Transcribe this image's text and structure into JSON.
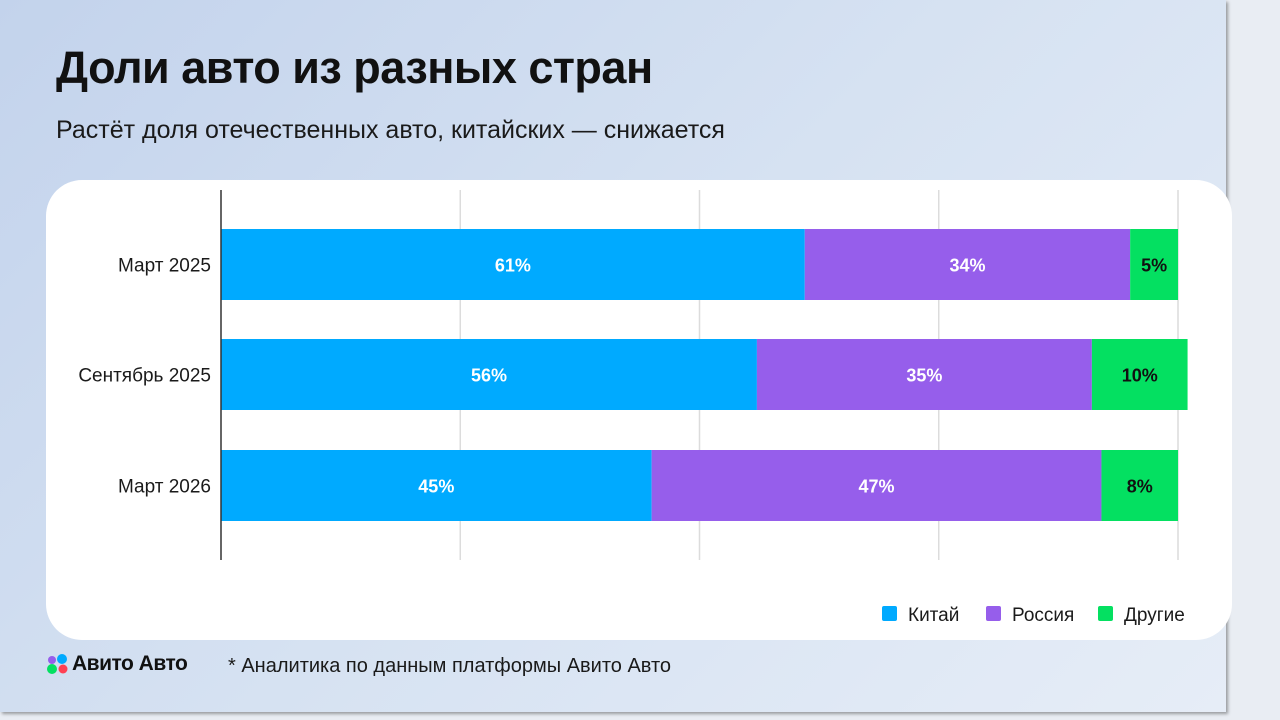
{
  "header": {
    "title": "Доли авто из разных стран",
    "subtitle": "Растёт доля отечественных авто, китайских — снижается"
  },
  "footer": {
    "brand": "Авито Авто",
    "note": "* Аналитика по данным платформы Авито Авто"
  },
  "chart_data": {
    "type": "bar",
    "orientation": "horizontal",
    "stacked": true,
    "categories": [
      "Март 2025",
      "Сентябрь 2025",
      "Март 2026"
    ],
    "series": [
      {
        "name": "Китай",
        "values": [
          61,
          56,
          45
        ],
        "labels": [
          "61%",
          "56%",
          "45%"
        ],
        "color": "#00aaff"
      },
      {
        "name": "Россия",
        "values": [
          34,
          35,
          47
        ],
        "labels": [
          "34%",
          "35%",
          "47%"
        ],
        "color": "#965eeb"
      },
      {
        "name": "Другие",
        "values": [
          5,
          10,
          8
        ],
        "labels": [
          "5%",
          "10%",
          "8%"
        ],
        "color": "#04e061"
      }
    ],
    "xlim": [
      0,
      100
    ],
    "grid": true,
    "legend": "bottom-right"
  }
}
